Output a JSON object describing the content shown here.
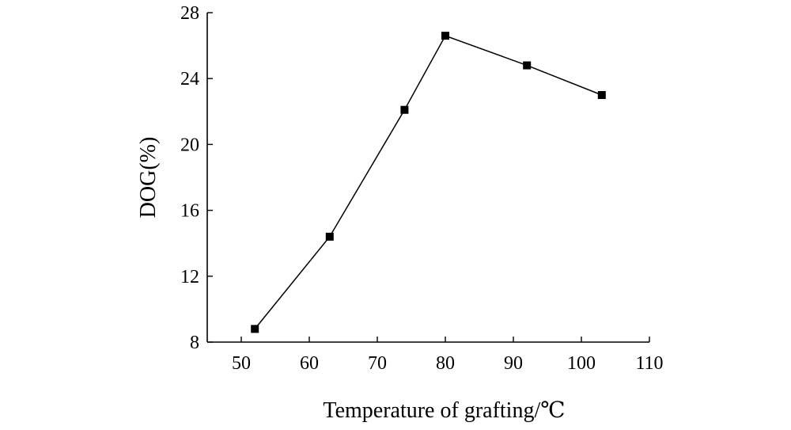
{
  "chart_data": {
    "type": "line",
    "title": "",
    "xlabel": "Temperature of grafting/℃",
    "ylabel": "DOG(%)",
    "xlim": [
      45,
      110
    ],
    "ylim": [
      8,
      28
    ],
    "xticks": [
      50,
      60,
      70,
      80,
      90,
      100,
      110
    ],
    "yticks": [
      8,
      12,
      16,
      20,
      24,
      28
    ],
    "xtick_labels": [
      "50",
      "60",
      "70",
      "80",
      "90",
      "100",
      "110"
    ],
    "ytick_labels": [
      "8",
      "12",
      "16",
      "20",
      "24",
      "28"
    ],
    "grid": false,
    "legend": "none",
    "series": [
      {
        "marker": "square",
        "color": "#000000",
        "x": [
          52,
          63,
          74,
          80,
          92,
          103
        ],
        "y": [
          8.8,
          14.4,
          22.1,
          26.6,
          24.8,
          23.0
        ]
      }
    ]
  }
}
